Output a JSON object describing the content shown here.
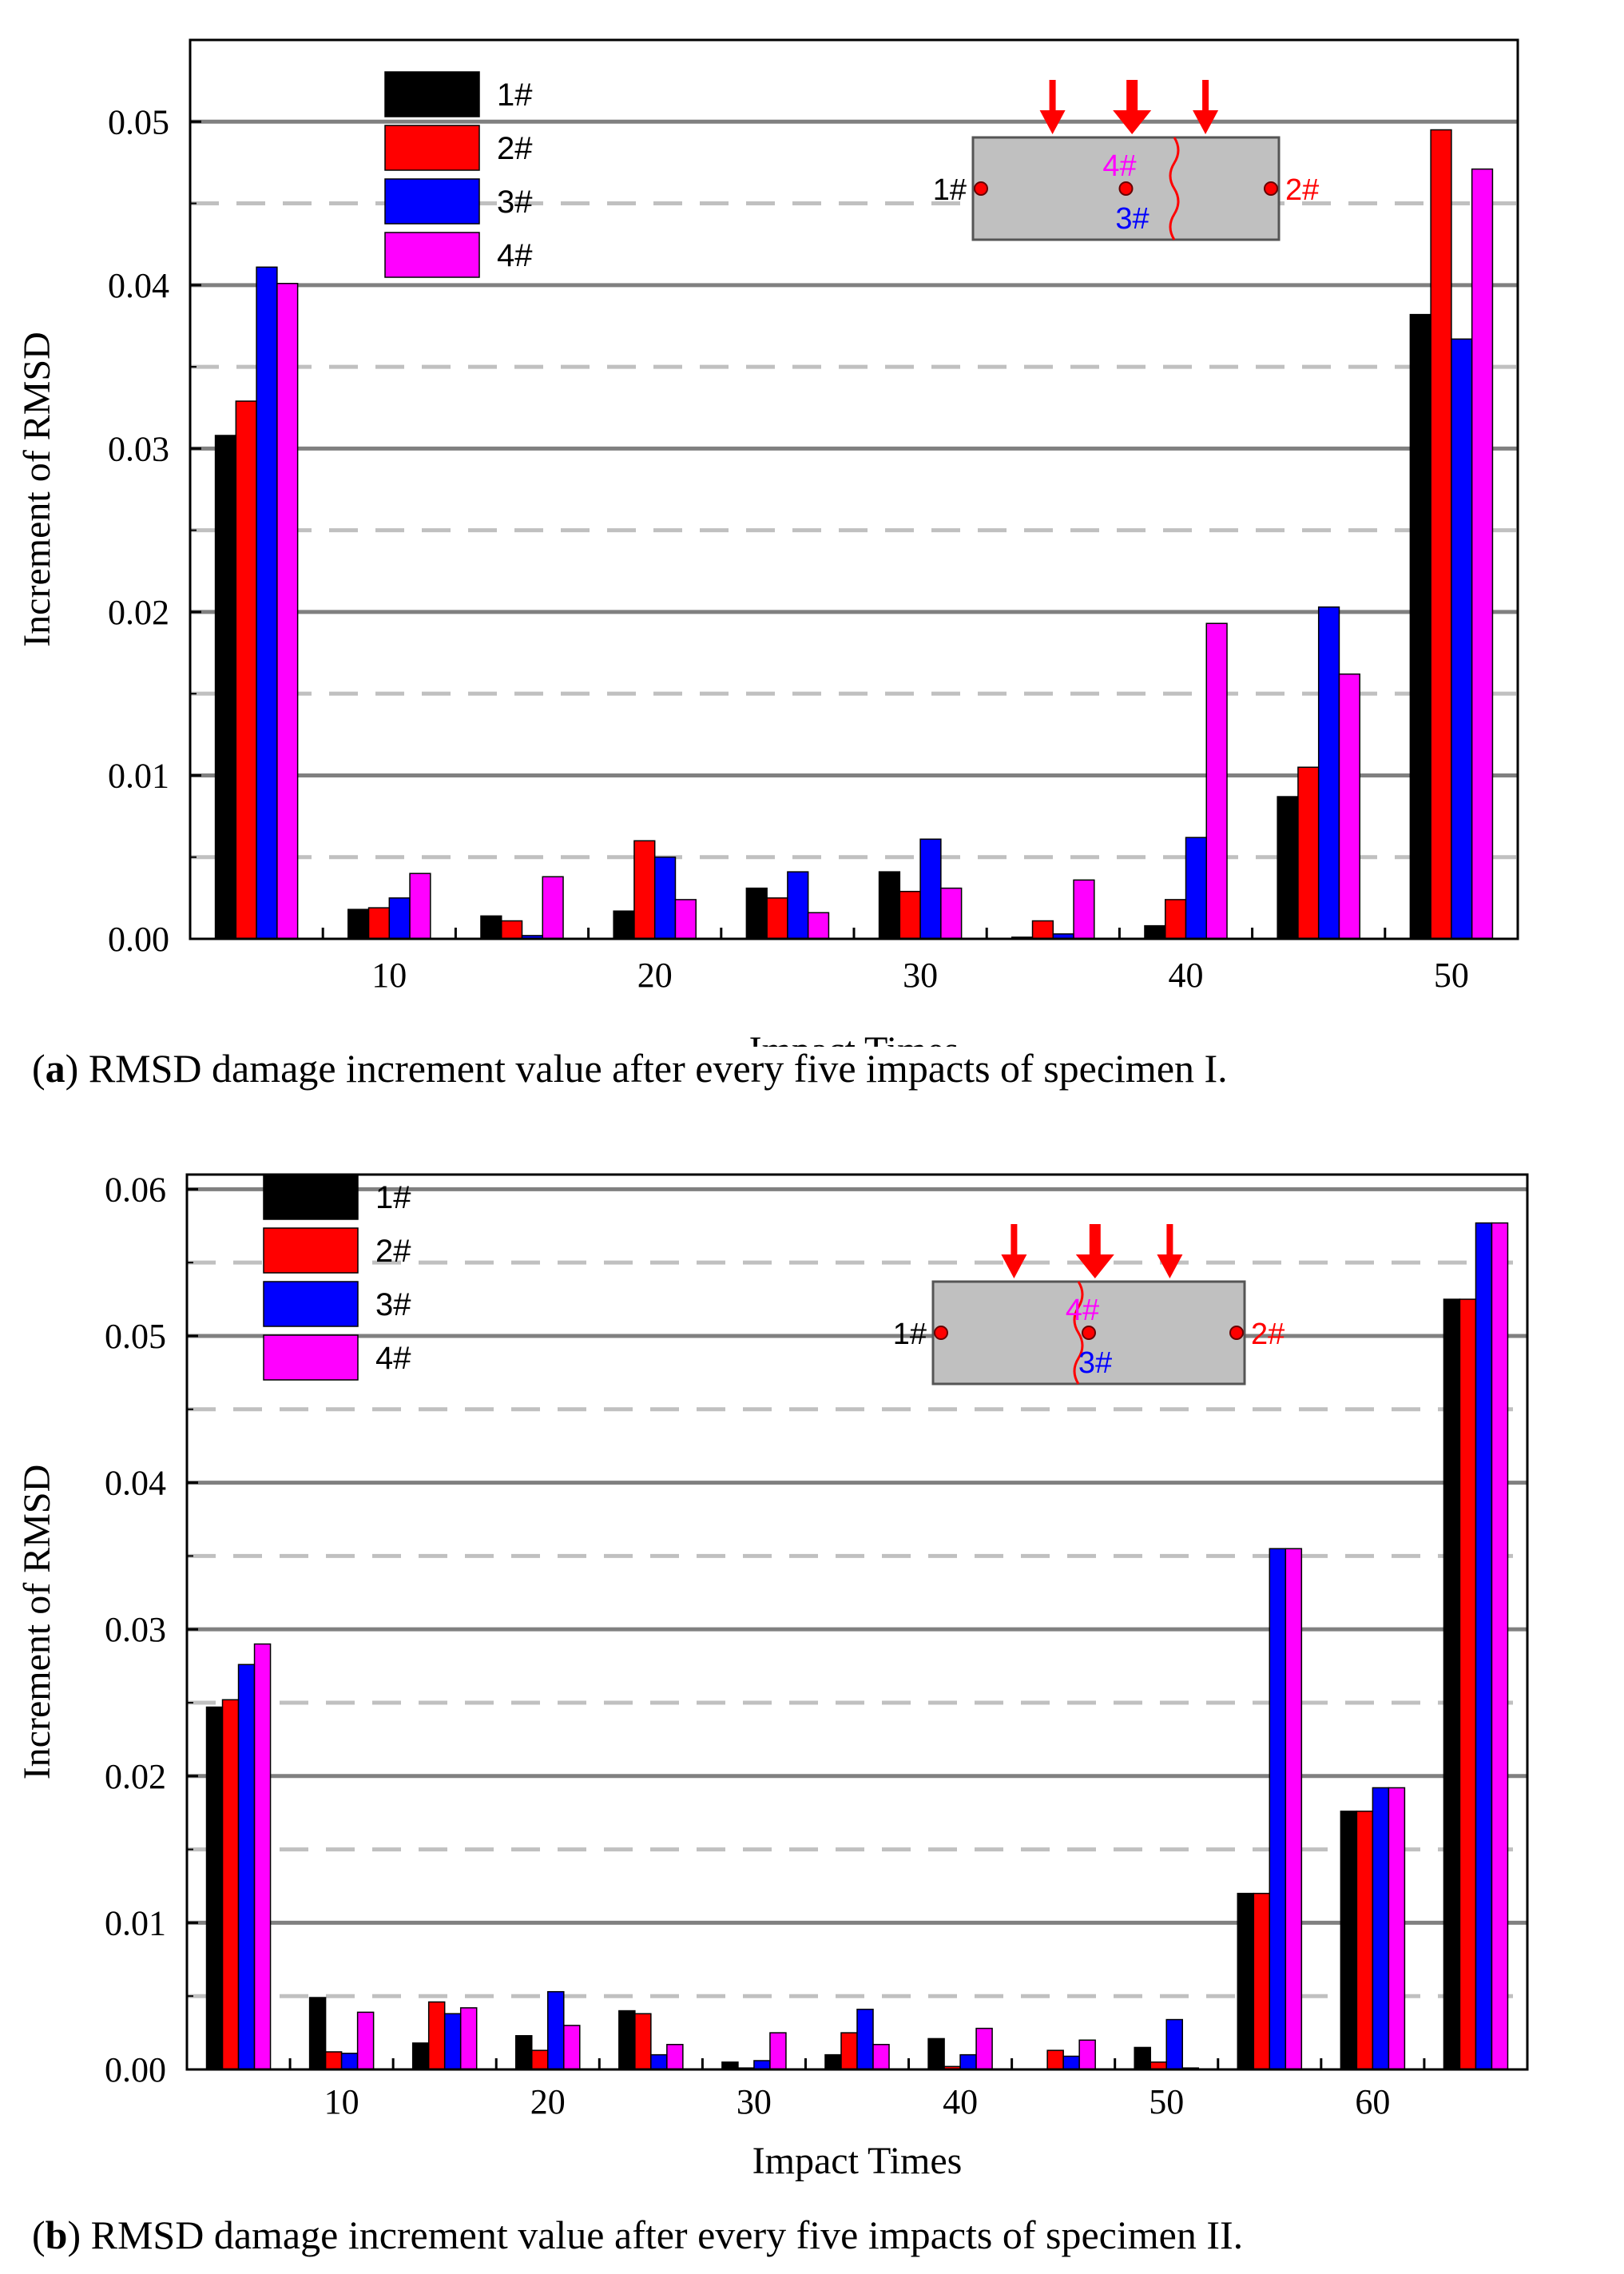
{
  "colors": {
    "s1": "#000000",
    "s2": "#ff0000",
    "s3": "#0000ff",
    "s4": "#ff00ff",
    "grid_major": "#808080",
    "grid_minor": "#c0c0c0",
    "inset_fill": "#c0c0c0",
    "marker": "#ff0000"
  },
  "legend": [
    "1#",
    "2#",
    "3#",
    "4#"
  ],
  "inset_labels": {
    "left": "1#",
    "right": "2#",
    "top": "4#",
    "bottom": "3#"
  },
  "chart_data": [
    {
      "type": "bar",
      "caption_prefix": "(a)",
      "caption_label": "a",
      "caption_text": " RMSD damage increment value after every five impacts of specimen I.",
      "xlabel": "Impact Times",
      "ylabel": "Increment of RMSD",
      "ylim": [
        0,
        0.055
      ],
      "yticks": [
        "0.00",
        "0.01",
        "0.02",
        "0.03",
        "0.04",
        "0.05"
      ],
      "ytick_values": [
        0,
        0.01,
        0.02,
        0.03,
        0.04,
        0.05
      ],
      "xtick_labels": [
        "10",
        "20",
        "30",
        "40",
        "50"
      ],
      "xtick_groups": [
        1,
        3,
        5,
        7,
        9
      ],
      "categories": [
        "5",
        "10",
        "15",
        "20",
        "25",
        "30",
        "35",
        "40",
        "45",
        "50"
      ],
      "series": [
        {
          "name": "1#",
          "values": [
            0.0308,
            0.0018,
            0.0014,
            0.0017,
            0.0031,
            0.0041,
            0.0001,
            0.0008,
            0.0087,
            0.0382
          ]
        },
        {
          "name": "2#",
          "values": [
            0.0329,
            0.0019,
            0.0011,
            0.006,
            0.0025,
            0.0029,
            0.0011,
            0.0024,
            0.0105,
            0.0495
          ]
        },
        {
          "name": "3#",
          "values": [
            0.0411,
            0.0025,
            0.0002,
            0.005,
            0.0041,
            0.0061,
            0.0003,
            0.0062,
            0.0203,
            0.0367
          ]
        },
        {
          "name": "4#",
          "values": [
            0.0401,
            0.004,
            0.0038,
            0.0024,
            0.0016,
            0.0031,
            0.0036,
            0.0193,
            0.0162,
            0.0471
          ]
        }
      ]
    },
    {
      "type": "bar",
      "caption_prefix": "(b)",
      "caption_label": "b",
      "caption_text": " RMSD damage increment value after every five impacts of specimen II.",
      "xlabel": "Impact Times",
      "ylabel": "Increment of RMSD",
      "ylim": [
        0,
        0.061
      ],
      "yticks": [
        "0.00",
        "0.01",
        "0.02",
        "0.03",
        "0.04",
        "0.05",
        "0.06"
      ],
      "ytick_values": [
        0,
        0.01,
        0.02,
        0.03,
        0.04,
        0.05,
        0.06
      ],
      "xtick_labels": [
        "10",
        "20",
        "30",
        "40",
        "50",
        "60"
      ],
      "xtick_groups": [
        1,
        3,
        5,
        7,
        9,
        11
      ],
      "categories": [
        "5",
        "10",
        "15",
        "20",
        "25",
        "30",
        "35",
        "40",
        "45",
        "50",
        "55",
        "60",
        "65"
      ],
      "series": [
        {
          "name": "1#",
          "values": [
            0.0247,
            0.0049,
            0.0018,
            0.0023,
            0.004,
            0.0005,
            0.001,
            0.0021,
            0.0,
            0.0015,
            0.012,
            0.0176,
            0.0525
          ]
        },
        {
          "name": "2#",
          "values": [
            0.0252,
            0.0012,
            0.0046,
            0.0013,
            0.0038,
            0.0001,
            0.0025,
            0.0002,
            0.0013,
            0.0005,
            0.012,
            0.0176,
            0.0525
          ]
        },
        {
          "name": "3#",
          "values": [
            0.0276,
            0.0011,
            0.0038,
            0.0053,
            0.001,
            0.0006,
            0.0041,
            0.001,
            0.0009,
            0.0034,
            0.0355,
            0.0192,
            0.0577
          ]
        },
        {
          "name": "4#",
          "values": [
            0.029,
            0.0039,
            0.0042,
            0.003,
            0.0017,
            0.0025,
            0.0017,
            0.0028,
            0.002,
            0.0001,
            0.0355,
            0.0192,
            0.0577
          ]
        }
      ]
    }
  ]
}
